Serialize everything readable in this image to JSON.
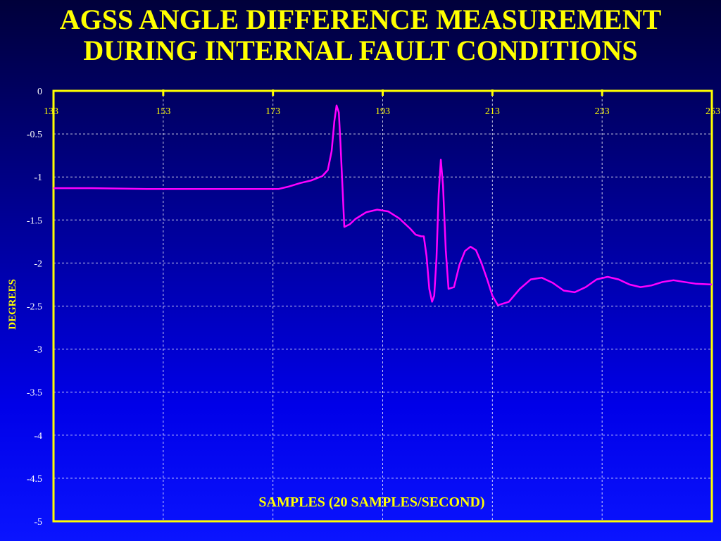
{
  "slide": {
    "title_line1": "AGSS ANGLE DIFFERENCE MEASUREMENT",
    "title_line2": "DURING INTERNAL FAULT CONDITIONS"
  },
  "chart_data": {
    "type": "line",
    "title": "AGSS ANGLE DIFFERENCE MEASUREMENT DURING INTERNAL FAULT CONDITIONS",
    "xlabel": "SAMPLES (20 SAMPLES/SECOND)",
    "ylabel": "DEGREES",
    "xlim": [
      133,
      253
    ],
    "ylim": [
      -5,
      0
    ],
    "x_ticks": [
      133,
      153,
      173,
      193,
      213,
      233,
      253
    ],
    "y_ticks": [
      0,
      -0.5,
      -1,
      -1.5,
      -2,
      -2.5,
      -3,
      -3.5,
      -4,
      -4.5,
      -5
    ],
    "grid": true,
    "line_color": "#ff00ff",
    "axis_color": "#ffff00",
    "series": [
      {
        "x": [
          133,
          140,
          150,
          155,
          165,
          170,
          174,
          176,
          178,
          180,
          182,
          183,
          183.7,
          184.2,
          184.6,
          185,
          185.3,
          186,
          187,
          188,
          190,
          192,
          194,
          196,
          198,
          199,
          200,
          200.5,
          201,
          201.5,
          202,
          202.4,
          202.8,
          203.2,
          203.6,
          204,
          204.5,
          205,
          206,
          207,
          208,
          209,
          210,
          211,
          212,
          213,
          214,
          216,
          218,
          220,
          222,
          224,
          226,
          228,
          230,
          232,
          234,
          236,
          238,
          240,
          242,
          244,
          246,
          248,
          250,
          253
        ],
        "y": [
          -1.13,
          -1.13,
          -1.14,
          -1.14,
          -1.14,
          -1.14,
          -1.14,
          -1.11,
          -1.07,
          -1.04,
          -0.99,
          -0.92,
          -0.7,
          -0.35,
          -0.17,
          -0.25,
          -0.6,
          -1.58,
          -1.55,
          -1.49,
          -1.41,
          -1.38,
          -1.4,
          -1.48,
          -1.6,
          -1.67,
          -1.69,
          -1.69,
          -1.92,
          -2.3,
          -2.45,
          -2.38,
          -1.95,
          -1.2,
          -0.8,
          -1.1,
          -1.85,
          -2.3,
          -2.28,
          -2.02,
          -1.86,
          -1.81,
          -1.85,
          -2.0,
          -2.18,
          -2.38,
          -2.49,
          -2.45,
          -2.3,
          -2.19,
          -2.17,
          -2.23,
          -2.32,
          -2.34,
          -2.28,
          -2.19,
          -2.16,
          -2.19,
          -2.25,
          -2.28,
          -2.26,
          -2.22,
          -2.2,
          -2.22,
          -2.24,
          -2.25
        ]
      }
    ]
  }
}
